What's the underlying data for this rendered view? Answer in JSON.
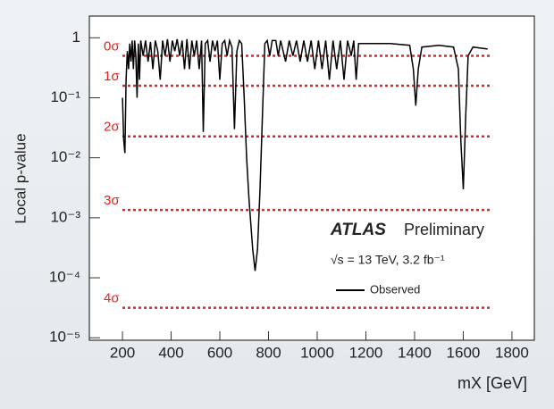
{
  "chart_data": {
    "type": "line",
    "ylabel": "Local p-value",
    "xlabel": "mX [GeV]",
    "log_y": true,
    "xlim": [
      64,
      1892
    ],
    "ylim": [
      9.1e-06,
      2.3
    ],
    "xticks": [
      200,
      400,
      600,
      800,
      1000,
      1200,
      1400,
      1600,
      1800
    ],
    "yticks": [
      1,
      {
        "value": 0.1,
        "label": "10⁻¹"
      },
      {
        "value": 0.01,
        "label": "10⁻²"
      },
      {
        "value": 0.001,
        "label": "10⁻³"
      },
      {
        "value": 0.0001,
        "label": "10⁻⁴"
      },
      {
        "value": 1e-05,
        "label": "10⁻⁵"
      }
    ],
    "experiment": "ATLAS",
    "status": "Preliminary",
    "conditions": "√s = 13 TeV, 3.2 fb⁻¹",
    "reference_color": "#e8211d",
    "reference_xlim": [
      200,
      1720
    ],
    "reference_lines": [
      {
        "label": "0σ",
        "value": 0.5
      },
      {
        "label": "1σ",
        "value": 0.1587
      },
      {
        "label": "2σ",
        "value": 0.02275
      },
      {
        "label": "3σ",
        "value": 0.00135
      },
      {
        "label": "4σ",
        "value": 3.17e-05
      }
    ],
    "series": [
      {
        "name": "Observed",
        "color": "#000000",
        "x": [
          200,
          205,
          210,
          215,
          220,
          225,
          230,
          235,
          240,
          245,
          250,
          255,
          260,
          265,
          270,
          275,
          285,
          295,
          305,
          315,
          325,
          335,
          345,
          355,
          365,
          375,
          385,
          395,
          405,
          415,
          425,
          435,
          445,
          455,
          465,
          475,
          485,
          495,
          505,
          515,
          525,
          532,
          540,
          550,
          560,
          570,
          580,
          590,
          600,
          610,
          620,
          630,
          640,
          650,
          660,
          670,
          680,
          690,
          700,
          710,
          720,
          735,
          745,
          755,
          765,
          775,
          785,
          795,
          805,
          815,
          830,
          840,
          850,
          870,
          885,
          900,
          915,
          930,
          945,
          960,
          975,
          990,
          1005,
          1020,
          1035,
          1050,
          1065,
          1080,
          1095,
          1110,
          1125,
          1140,
          1150,
          1160,
          1170,
          1200,
          1300,
          1380,
          1395,
          1405,
          1415,
          1430,
          1500,
          1560,
          1580,
          1590,
          1600,
          1610,
          1620,
          1640,
          1700
        ],
        "values": [
          0.1,
          0.02,
          0.012,
          0.2,
          0.6,
          0.3,
          0.8,
          0.4,
          0.9,
          0.3,
          0.9,
          0.5,
          0.1,
          0.8,
          0.2,
          0.9,
          0.5,
          0.9,
          0.4,
          0.85,
          0.3,
          0.9,
          0.6,
          0.2,
          0.9,
          0.5,
          0.95,
          0.4,
          0.9,
          0.6,
          0.95,
          0.5,
          0.9,
          0.3,
          0.95,
          0.3,
          0.9,
          0.5,
          0.9,
          0.3,
          0.9,
          0.027,
          0.8,
          0.9,
          0.4,
          0.9,
          0.6,
          0.9,
          0.2,
          0.8,
          0.9,
          0.5,
          0.9,
          0.7,
          0.03,
          0.6,
          0.9,
          0.8,
          0.1,
          0.01,
          0.002,
          0.0003,
          0.00013,
          0.0003,
          0.003,
          0.05,
          0.8,
          0.9,
          0.5,
          0.9,
          0.9,
          0.5,
          0.9,
          0.4,
          0.9,
          0.5,
          0.9,
          0.4,
          0.9,
          0.4,
          0.9,
          0.3,
          0.9,
          0.3,
          0.9,
          0.2,
          0.9,
          0.3,
          0.9,
          0.2,
          0.9,
          0.5,
          0.9,
          0.2,
          0.8,
          0.8,
          0.8,
          0.75,
          0.3,
          0.074,
          0.3,
          0.7,
          0.75,
          0.7,
          0.3,
          0.02,
          0.003,
          0.05,
          0.5,
          0.7,
          0.65
        ]
      }
    ]
  }
}
